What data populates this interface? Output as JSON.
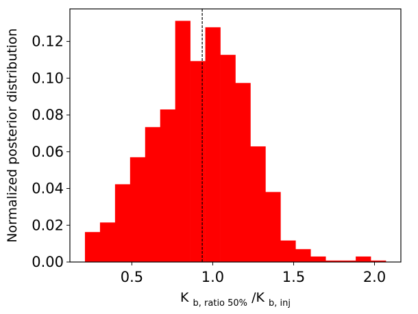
{
  "chart_data": {
    "type": "bar",
    "subtype": "histogram",
    "bar_color": "#ff0000",
    "bin_edges": [
      0.21,
      0.303,
      0.396,
      0.489,
      0.582,
      0.675,
      0.768,
      0.861,
      0.954,
      1.047,
      1.14,
      1.233,
      1.326,
      1.419,
      1.512,
      1.605,
      1.698,
      1.791,
      1.884,
      1.977,
      2.07
    ],
    "values": [
      0.0163,
      0.0215,
      0.0423,
      0.057,
      0.0734,
      0.083,
      0.1312,
      0.1093,
      0.1277,
      0.1127,
      0.0974,
      0.0629,
      0.0381,
      0.0117,
      0.007,
      0.003,
      0.0008,
      0.0008,
      0.003,
      0.0008
    ],
    "reference_line": {
      "x": 0.935,
      "style": "dashed",
      "color": "#000000"
    },
    "xlim": [
      0.117,
      2.163
    ],
    "ylim": [
      0.0,
      0.1377
    ],
    "xticks": [
      0.5,
      1.0,
      1.5,
      2.0
    ],
    "xtick_labels": [
      "0.5",
      "1.0",
      "1.5",
      "2.0"
    ],
    "yticks": [
      0.0,
      0.02,
      0.04,
      0.06,
      0.08,
      0.1,
      0.12
    ],
    "ytick_labels": [
      "0.00",
      "0.02",
      "0.04",
      "0.06",
      "0.08",
      "0.10",
      "0.12"
    ],
    "xlabel": {
      "main": "K",
      "sub1": "b, ratio 50%",
      "sep": "/K",
      "sub2": "b, inj"
    },
    "ylabel": "Normalized posterior distribution",
    "grid": false
  }
}
